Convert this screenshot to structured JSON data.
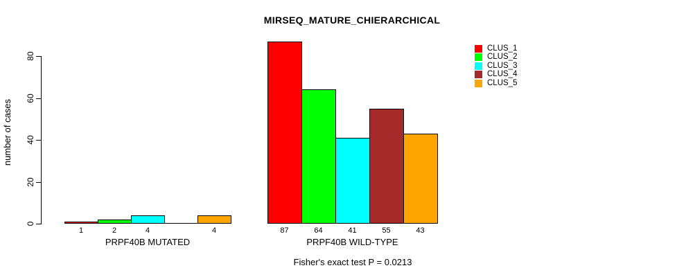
{
  "chart_data": {
    "type": "bar",
    "title": "MIRSEQ_MATURE_CHIERARCHICAL",
    "ylabel": "number of cases",
    "yticks": [
      0,
      20,
      40,
      60,
      80
    ],
    "ylim": [
      0,
      87
    ],
    "grid": false,
    "legend_position": "top-right",
    "series_names": [
      "CLUS_1",
      "CLUS_2",
      "CLUS_3",
      "CLUS_4",
      "CLUS_5"
    ],
    "colors": [
      "#FF0000",
      "#00FF00",
      "#00FFFF",
      "#A52A2A",
      "#FFA500"
    ],
    "groups": [
      {
        "label": "PRPF40B MUTATED",
        "values": [
          1,
          2,
          4,
          0,
          4
        ],
        "bar_labels": [
          "1",
          "2",
          "4",
          "",
          "4"
        ]
      },
      {
        "label": "PRPF40B WILD-TYPE",
        "values": [
          87,
          64,
          41,
          55,
          43
        ],
        "bar_labels": [
          "87",
          "64",
          "41",
          "55",
          "43"
        ]
      }
    ],
    "caption": "Fisher's exact test P = 0.0213"
  }
}
